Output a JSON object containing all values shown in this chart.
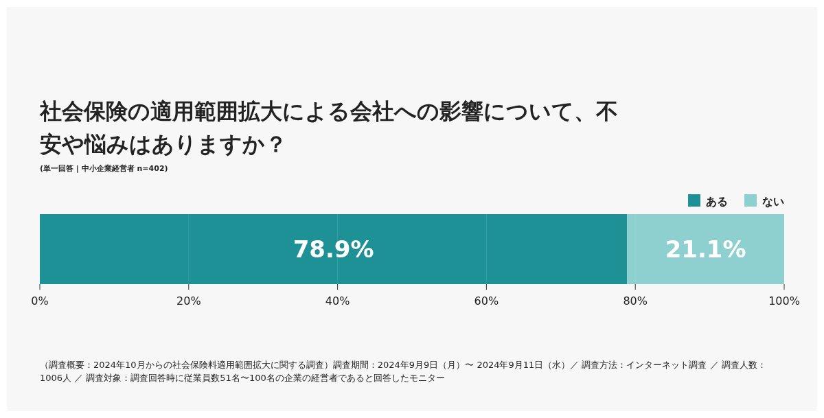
{
  "chart_data": {
    "type": "bar",
    "orientation": "horizontal",
    "stacked": true,
    "title": "社会保険の適用範囲拡大による会社への影響について、不安や悩みはありますか？",
    "subtitle": "(単一回答 | 中小企業経営者 n=402)",
    "categories": [
      null
    ],
    "series": [
      {
        "name": "ある",
        "color": "#1e9196",
        "values": [
          78.9
        ],
        "value_labels": [
          "78.9%"
        ]
      },
      {
        "name": "ない",
        "color": "#8dd0cf",
        "values": [
          21.1
        ],
        "value_labels": [
          "21.1%"
        ]
      }
    ],
    "xlim": [
      0,
      100
    ],
    "xticks": [
      {
        "value": 0,
        "label": "0%"
      },
      {
        "value": 20,
        "label": "20%"
      },
      {
        "value": 40,
        "label": "40%"
      },
      {
        "value": 60,
        "label": "60%"
      },
      {
        "value": 80,
        "label": "80%"
      },
      {
        "value": 100,
        "label": "100%"
      }
    ],
    "grid": "x",
    "legend": "top right",
    "annotations": [
      "（調査概要：2024年10月からの社会保険料適用範囲拡大に関する調査）調査期間：2024年9月9日（月）〜 2024年9月11日（水）／ 調査方法：インターネット調査 ／ 調査人数：1006人 ／ 調査対象：調査回答時に従業員数51名〜100名の企業の経営者であると回答したモニター"
    ]
  }
}
